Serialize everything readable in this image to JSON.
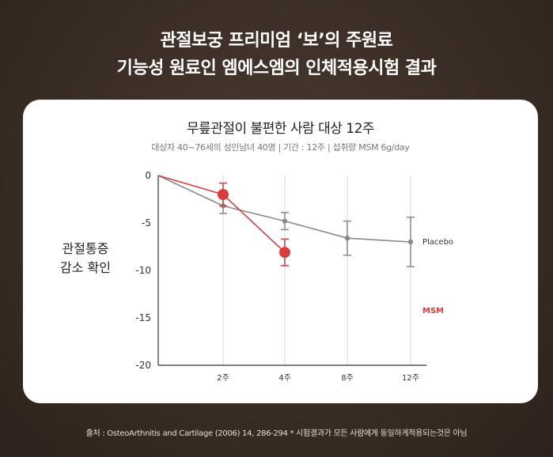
{
  "headline": {
    "line1": "관절보궁 프리미엄 ‘보’의 주원료",
    "line2": "기능성 원료인 엠에스엠의 인체적용시험 결과"
  },
  "colors": {
    "placebo": "#8a8a8a",
    "msm": "#dd3b3b",
    "grid": "#e6e6e6"
  },
  "chart_data": {
    "type": "line",
    "title": "무릎관절이 불편한 사람 대상 12주",
    "subtitle": "대상자 40~76세의 성인남녀 40명  |  기간 : 12주  |  섭취량 MSM 6g/day",
    "ylabel_lines": [
      "관절통증",
      "감소 확인"
    ],
    "xlabel": "",
    "x_ticks": [
      {
        "value": 2,
        "label": "2주"
      },
      {
        "value": 4,
        "label": "4주"
      },
      {
        "value": 8,
        "label": "8주"
      },
      {
        "value": 12,
        "label": "12주"
      }
    ],
    "y_ticks": [
      0,
      -5,
      -10,
      -15,
      -20
    ],
    "ylim": [
      -20,
      0
    ],
    "grid": "vertical",
    "series": [
      {
        "name": "Placebo",
        "x": [
          0,
          2,
          4,
          8,
          12
        ],
        "y": [
          0,
          -3.2,
          -4.8,
          -6.6,
          -7.0
        ],
        "err": [
          0,
          0.8,
          0.9,
          1.8,
          2.6
        ]
      },
      {
        "name": "MSM",
        "x": [
          0,
          2,
          4
        ],
        "y": [
          0,
          -2.0,
          -8.1
        ],
        "err": [
          0,
          1.2,
          1.4
        ]
      }
    ]
  },
  "footnote": "출처 : OsteoArthnitis and Cartilage (2006) 14, 286-294 * 시험결과가 모든 사람에게 동일하게적용되는것은 아님"
}
